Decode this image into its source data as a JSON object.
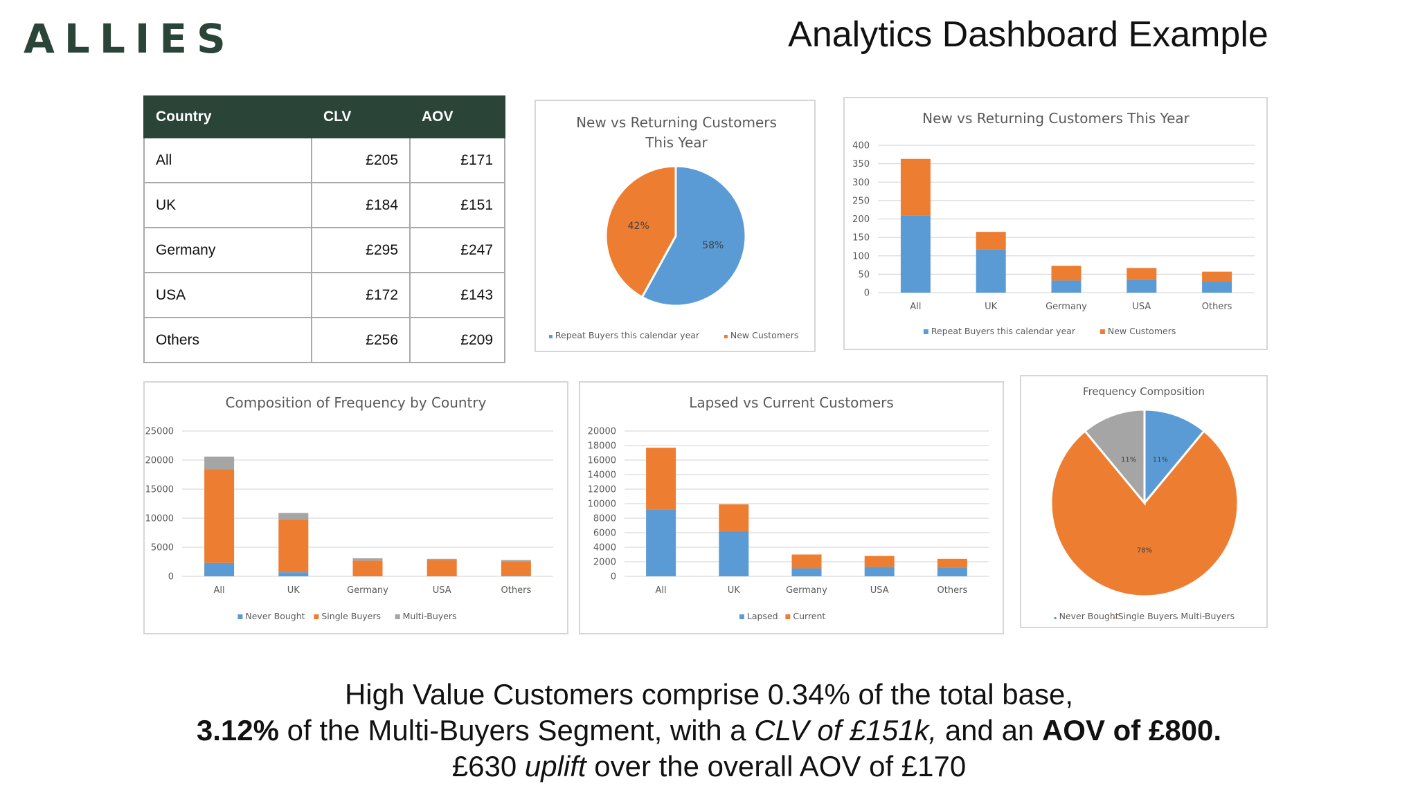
{
  "header": {
    "logo_text": "ALLIES",
    "title": "Analytics Dashboard Example"
  },
  "colors": {
    "blue": "#5b9bd5",
    "orange": "#ed7d31",
    "gray": "#a5a5a5",
    "dark_green": "#2b4438",
    "grid": "#d9d9d9",
    "axis_text": "#595959"
  },
  "summary": {
    "line1": "High Value Customers comprise 0.34% of the total base,",
    "line2_bold_a": "3.12%",
    "line2_text_a": " of the Multi-Buyers Segment, with a ",
    "line2_italic": "CLV of £151k,",
    "line2_text_b": " and an ",
    "line2_bold_b": "AOV of £800.",
    "line3_text_a": "£630 ",
    "line3_italic": "uplift",
    "line3_text_b": " over the overall AOV of £170"
  },
  "chart_data": [
    {
      "id": "clv_aov_table",
      "type": "table",
      "columns": [
        "Country",
        "CLV",
        "AOV"
      ],
      "rows": [
        [
          "All",
          "£205",
          "£171"
        ],
        [
          "UK",
          "£184",
          "£151"
        ],
        [
          "Germany",
          "£295",
          "£247"
        ],
        [
          "USA",
          "£172",
          "£143"
        ],
        [
          "Others",
          "£256",
          "£209"
        ]
      ]
    },
    {
      "id": "pie_new_vs_returning",
      "type": "pie",
      "title_lines": [
        "New vs Returning Customers",
        "This Year"
      ],
      "slices": [
        {
          "name": "Repeat Buyers this calendar year",
          "value": 58,
          "label": "58%",
          "color": "#5b9bd5"
        },
        {
          "name": "New Customers",
          "value": 42,
          "label": "42%",
          "color": "#ed7d31"
        }
      ],
      "legend_position": "bottom"
    },
    {
      "id": "bar_new_vs_returning",
      "type": "bar",
      "stacked": true,
      "title": "New vs Returning Customers This Year",
      "categories": [
        "All",
        "UK",
        "Germany",
        "USA",
        "Others"
      ],
      "series": [
        {
          "name": "Repeat Buyers this calendar year",
          "values": [
            210,
            118,
            33,
            35,
            30
          ],
          "color": "#5b9bd5"
        },
        {
          "name": "New Customers",
          "values": [
            153,
            47,
            40,
            32,
            27
          ],
          "color": "#ed7d31"
        }
      ],
      "ylim": [
        0,
        400
      ],
      "yticks": [
        0,
        50,
        100,
        150,
        200,
        250,
        300,
        350,
        400
      ],
      "grid": true,
      "legend_position": "bottom"
    },
    {
      "id": "bar_frequency_by_country",
      "type": "bar",
      "stacked": true,
      "title": "Composition  of Frequency by Country",
      "categories": [
        "All",
        "UK",
        "Germany",
        "USA",
        "Others"
      ],
      "series": [
        {
          "name": "Never Bought",
          "values": [
            2300,
            700,
            0,
            0,
            200
          ],
          "color": "#5b9bd5"
        },
        {
          "name": "Single Buyers",
          "values": [
            16100,
            9100,
            2700,
            2800,
            2300
          ],
          "color": "#ed7d31"
        },
        {
          "name": "Multi-Buyers",
          "values": [
            2200,
            1100,
            400,
            200,
            300
          ],
          "color": "#a5a5a5"
        }
      ],
      "ylim": [
        0,
        25000
      ],
      "yticks": [
        0,
        5000,
        10000,
        15000,
        20000,
        25000
      ],
      "grid": true,
      "legend_position": "bottom"
    },
    {
      "id": "bar_lapsed_vs_current",
      "type": "bar",
      "stacked": true,
      "title": "Lapsed vs Current Customers",
      "categories": [
        "All",
        "UK",
        "Germany",
        "USA",
        "Others"
      ],
      "series": [
        {
          "name": "Lapsed",
          "values": [
            9200,
            6200,
            1100,
            1300,
            1200
          ],
          "color": "#5b9bd5"
        },
        {
          "name": "Current",
          "values": [
            8500,
            3700,
            1900,
            1500,
            1200
          ],
          "color": "#ed7d31"
        }
      ],
      "ylim": [
        0,
        20000
      ],
      "yticks": [
        0,
        2000,
        4000,
        6000,
        8000,
        10000,
        12000,
        14000,
        16000,
        18000,
        20000
      ],
      "grid": true,
      "legend_position": "bottom"
    },
    {
      "id": "pie_frequency_composition",
      "type": "pie",
      "title_lines": [
        "Frequency Composition"
      ],
      "slices": [
        {
          "name": "Never Bought",
          "value": 11,
          "label": "11%",
          "color": "#5b9bd5"
        },
        {
          "name": "Single Buyers",
          "value": 78,
          "label": "78%",
          "color": "#ed7d31"
        },
        {
          "name": "Multi-Buyers",
          "value": 11,
          "label": "11%",
          "color": "#a5a5a5"
        }
      ],
      "legend_position": "bottom"
    }
  ]
}
